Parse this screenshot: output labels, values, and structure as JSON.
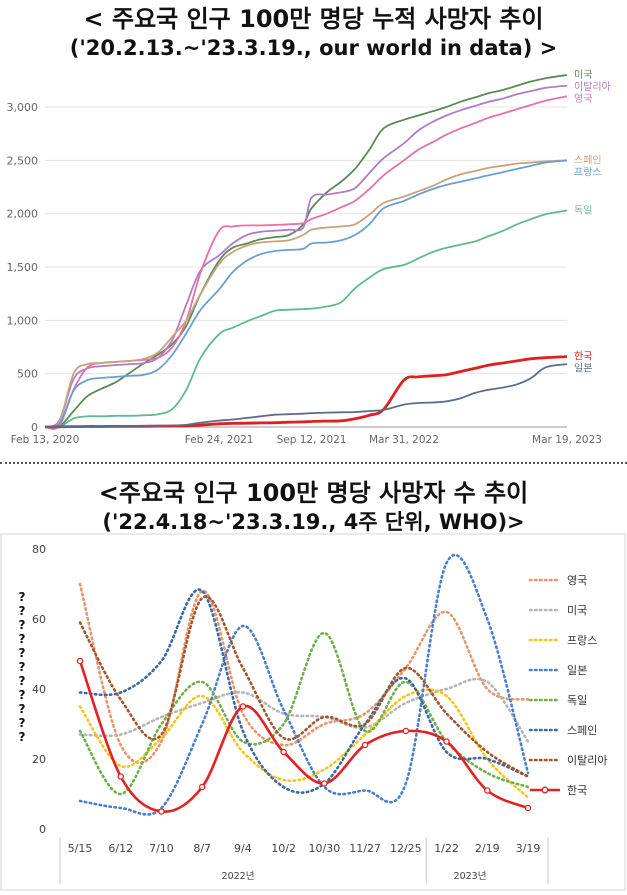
{
  "header1": {
    "title": "< 주요국 인구 100만 명당 누적 사망자 추이",
    "subtitle": "('20.2.13.~'23.3.19., our world in data) >"
  },
  "header2": {
    "title": "<주요국 인구 100만 명당 사망자 수 추이",
    "subtitle": "('22.4.18~'23.3.19., 4주 단위, WHO)>"
  },
  "chart_data": [
    {
      "type": "line",
      "title": "< 주요국 인구 100만 명당 누적 사망자 추이",
      "subtitle": "('20.2.13.~'23.3.19., our world in data) >",
      "x_dates": [
        "2020-02-13",
        "2020-03-15",
        "2020-04-15",
        "2020-05-15",
        "2020-06-15",
        "2020-07-15",
        "2020-08-15",
        "2020-09-15",
        "2020-10-15",
        "2020-11-15",
        "2020-12-15",
        "2021-01-15",
        "2021-02-24",
        "2021-03-25",
        "2021-04-25",
        "2021-05-25",
        "2021-06-25",
        "2021-07-25",
        "2021-08-25",
        "2021-09-12",
        "2021-10-15",
        "2021-11-15",
        "2021-12-15",
        "2022-01-15",
        "2022-02-15",
        "2022-03-31",
        "2022-05-01",
        "2022-06-01",
        "2022-07-01",
        "2022-08-01",
        "2022-09-01",
        "2022-10-01",
        "2022-11-01",
        "2022-12-01",
        "2023-01-01",
        "2023-02-01",
        "2023-03-19"
      ],
      "tick_labels": [
        "Feb 13, 2020",
        "Feb 24, 2021",
        "Sep 12, 2021",
        "Mar 31, 2022",
        "Mar 19, 2023"
      ],
      "tick_dates": [
        "2020-02-13",
        "2021-02-24",
        "2021-09-12",
        "2022-03-31",
        "2023-03-19"
      ],
      "y_ticks": [
        "0",
        "500",
        "1,000",
        "1,500",
        "2,000",
        "2,500",
        "3,000"
      ],
      "ylim": [
        0,
        3300
      ],
      "series": [
        {
          "name": "미국",
          "color": "#5a8a5a",
          "values": [
            0,
            5,
            150,
            290,
            360,
            420,
            510,
            600,
            680,
            780,
            950,
            1250,
            1560,
            1680,
            1720,
            1760,
            1780,
            1800,
            1900,
            2050,
            2200,
            2300,
            2420,
            2600,
            2800,
            2880,
            2920,
            2960,
            3000,
            3050,
            3090,
            3130,
            3160,
            3200,
            3240,
            3270,
            3300
          ]
        },
        {
          "name": "이탈리아",
          "color": "#b07cc7",
          "values": [
            0,
            60,
            450,
            550,
            570,
            580,
            590,
            600,
            650,
            820,
            1150,
            1470,
            1610,
            1720,
            1800,
            1830,
            1840,
            1850,
            1870,
            2150,
            2180,
            2200,
            2240,
            2380,
            2520,
            2660,
            2780,
            2860,
            2920,
            2970,
            3010,
            3050,
            3080,
            3120,
            3150,
            3180,
            3200
          ]
        },
        {
          "name": "영국",
          "color": "#e670a8",
          "values": [
            0,
            10,
            350,
            560,
            600,
            610,
            620,
            630,
            650,
            750,
            1000,
            1450,
            1840,
            1880,
            1890,
            1890,
            1895,
            1900,
            1910,
            1950,
            2000,
            2060,
            2120,
            2230,
            2360,
            2500,
            2600,
            2670,
            2740,
            2800,
            2850,
            2900,
            2940,
            2980,
            3020,
            3060,
            3100
          ]
        },
        {
          "name": "스페인",
          "color": "#c9a27a",
          "values": [
            0,
            50,
            500,
            590,
            600,
            610,
            620,
            640,
            700,
            850,
            1000,
            1250,
            1530,
            1640,
            1700,
            1730,
            1740,
            1750,
            1800,
            1850,
            1870,
            1880,
            1900,
            1990,
            2100,
            2160,
            2210,
            2260,
            2320,
            2370,
            2400,
            2430,
            2450,
            2470,
            2480,
            2490,
            2500
          ]
        },
        {
          "name": "프랑스",
          "color": "#6a9fd4",
          "values": [
            0,
            30,
            340,
            440,
            460,
            470,
            480,
            490,
            540,
            680,
            880,
            1100,
            1290,
            1450,
            1560,
            1620,
            1650,
            1660,
            1670,
            1720,
            1730,
            1750,
            1800,
            1900,
            2050,
            2120,
            2180,
            2230,
            2270,
            2300,
            2330,
            2360,
            2390,
            2420,
            2450,
            2480,
            2500
          ]
        },
        {
          "name": "독일",
          "color": "#5fba8c",
          "values": [
            0,
            1,
            80,
            100,
            100,
            105,
            105,
            110,
            120,
            170,
            350,
            650,
            870,
            930,
            990,
            1040,
            1090,
            1100,
            1105,
            1110,
            1130,
            1170,
            1300,
            1400,
            1480,
            1520,
            1580,
            1640,
            1680,
            1710,
            1740,
            1790,
            1840,
            1900,
            1950,
            1995,
            2030
          ]
        },
        {
          "name": "한국",
          "color": "#e02020",
          "values": [
            0,
            2,
            4,
            5,
            5,
            6,
            6,
            7,
            8,
            9,
            12,
            18,
            30,
            34,
            36,
            38,
            40,
            45,
            48,
            52,
            55,
            58,
            78,
            110,
            165,
            440,
            470,
            480,
            490,
            520,
            550,
            580,
            600,
            620,
            640,
            650,
            660
          ]
        },
        {
          "name": "일본",
          "color": "#5a6b8c",
          "values": [
            0,
            1,
            2,
            5,
            7,
            8,
            9,
            10,
            12,
            14,
            20,
            40,
            60,
            70,
            85,
            100,
            115,
            120,
            125,
            130,
            135,
            138,
            140,
            150,
            160,
            210,
            225,
            230,
            240,
            270,
            320,
            350,
            370,
            400,
            460,
            560,
            590
          ]
        }
      ]
    },
    {
      "type": "line",
      "title": "<주요국 인구 100만 명당 사망자 수 추이",
      "subtitle": "('22.4.18~'23.3.19., 4주 단위, WHO)>",
      "categories": [
        "5/15",
        "6/12",
        "7/10",
        "8/7",
        "9/4",
        "10/2",
        "10/30",
        "11/27",
        "12/25",
        "1/22",
        "2/19",
        "3/19"
      ],
      "year_labels": [
        "2022년",
        "2023년"
      ],
      "y_ticks": [
        "0",
        "20",
        "40",
        "60",
        "80"
      ],
      "ylim": [
        0,
        80
      ],
      "ylabel_glyphs": [
        "?",
        "?",
        "?",
        "?",
        "?",
        "?",
        "?",
        "?",
        "?",
        "?",
        "?"
      ],
      "series": [
        {
          "name": "영국",
          "color": "#e9946a",
          "style": "dotted",
          "values": [
            70,
            24,
            25,
            68,
            33,
            24,
            30,
            33,
            46,
            62,
            40,
            37
          ]
        },
        {
          "name": "미국",
          "color": "#b5b5b5",
          "style": "dotted",
          "values": [
            27,
            27,
            32,
            36,
            39,
            33,
            32,
            29,
            36,
            40,
            42,
            25
          ]
        },
        {
          "name": "프랑스",
          "color": "#f5c518",
          "style": "dotted",
          "values": [
            35,
            18,
            26,
            38,
            22,
            14,
            17,
            27,
            38,
            38,
            20,
            9
          ]
        },
        {
          "name": "일본",
          "color": "#4a7fd0",
          "style": "dotted",
          "values": [
            8,
            6,
            6,
            30,
            58,
            34,
            12,
            11,
            13,
            76,
            60,
            16
          ]
        },
        {
          "name": "독일",
          "color": "#6fb04a",
          "style": "dotted",
          "values": [
            28,
            10,
            30,
            42,
            25,
            30,
            56,
            28,
            42,
            25,
            16,
            12
          ]
        },
        {
          "name": "스페인",
          "color": "#3c6aa8",
          "style": "dotted",
          "values": [
            39,
            39,
            48,
            68,
            28,
            12,
            13,
            30,
            43,
            22,
            20,
            15
          ]
        },
        {
          "name": "이탈리아",
          "color": "#a5552c",
          "style": "dotted",
          "values": [
            59,
            37,
            27,
            66,
            46,
            26,
            32,
            30,
            46,
            33,
            22,
            15
          ]
        },
        {
          "name": "한국",
          "color": "#e52020",
          "style": "solid",
          "values": [
            48,
            15,
            5,
            12,
            35,
            22,
            13,
            24,
            28,
            25,
            11,
            6
          ]
        }
      ]
    }
  ]
}
